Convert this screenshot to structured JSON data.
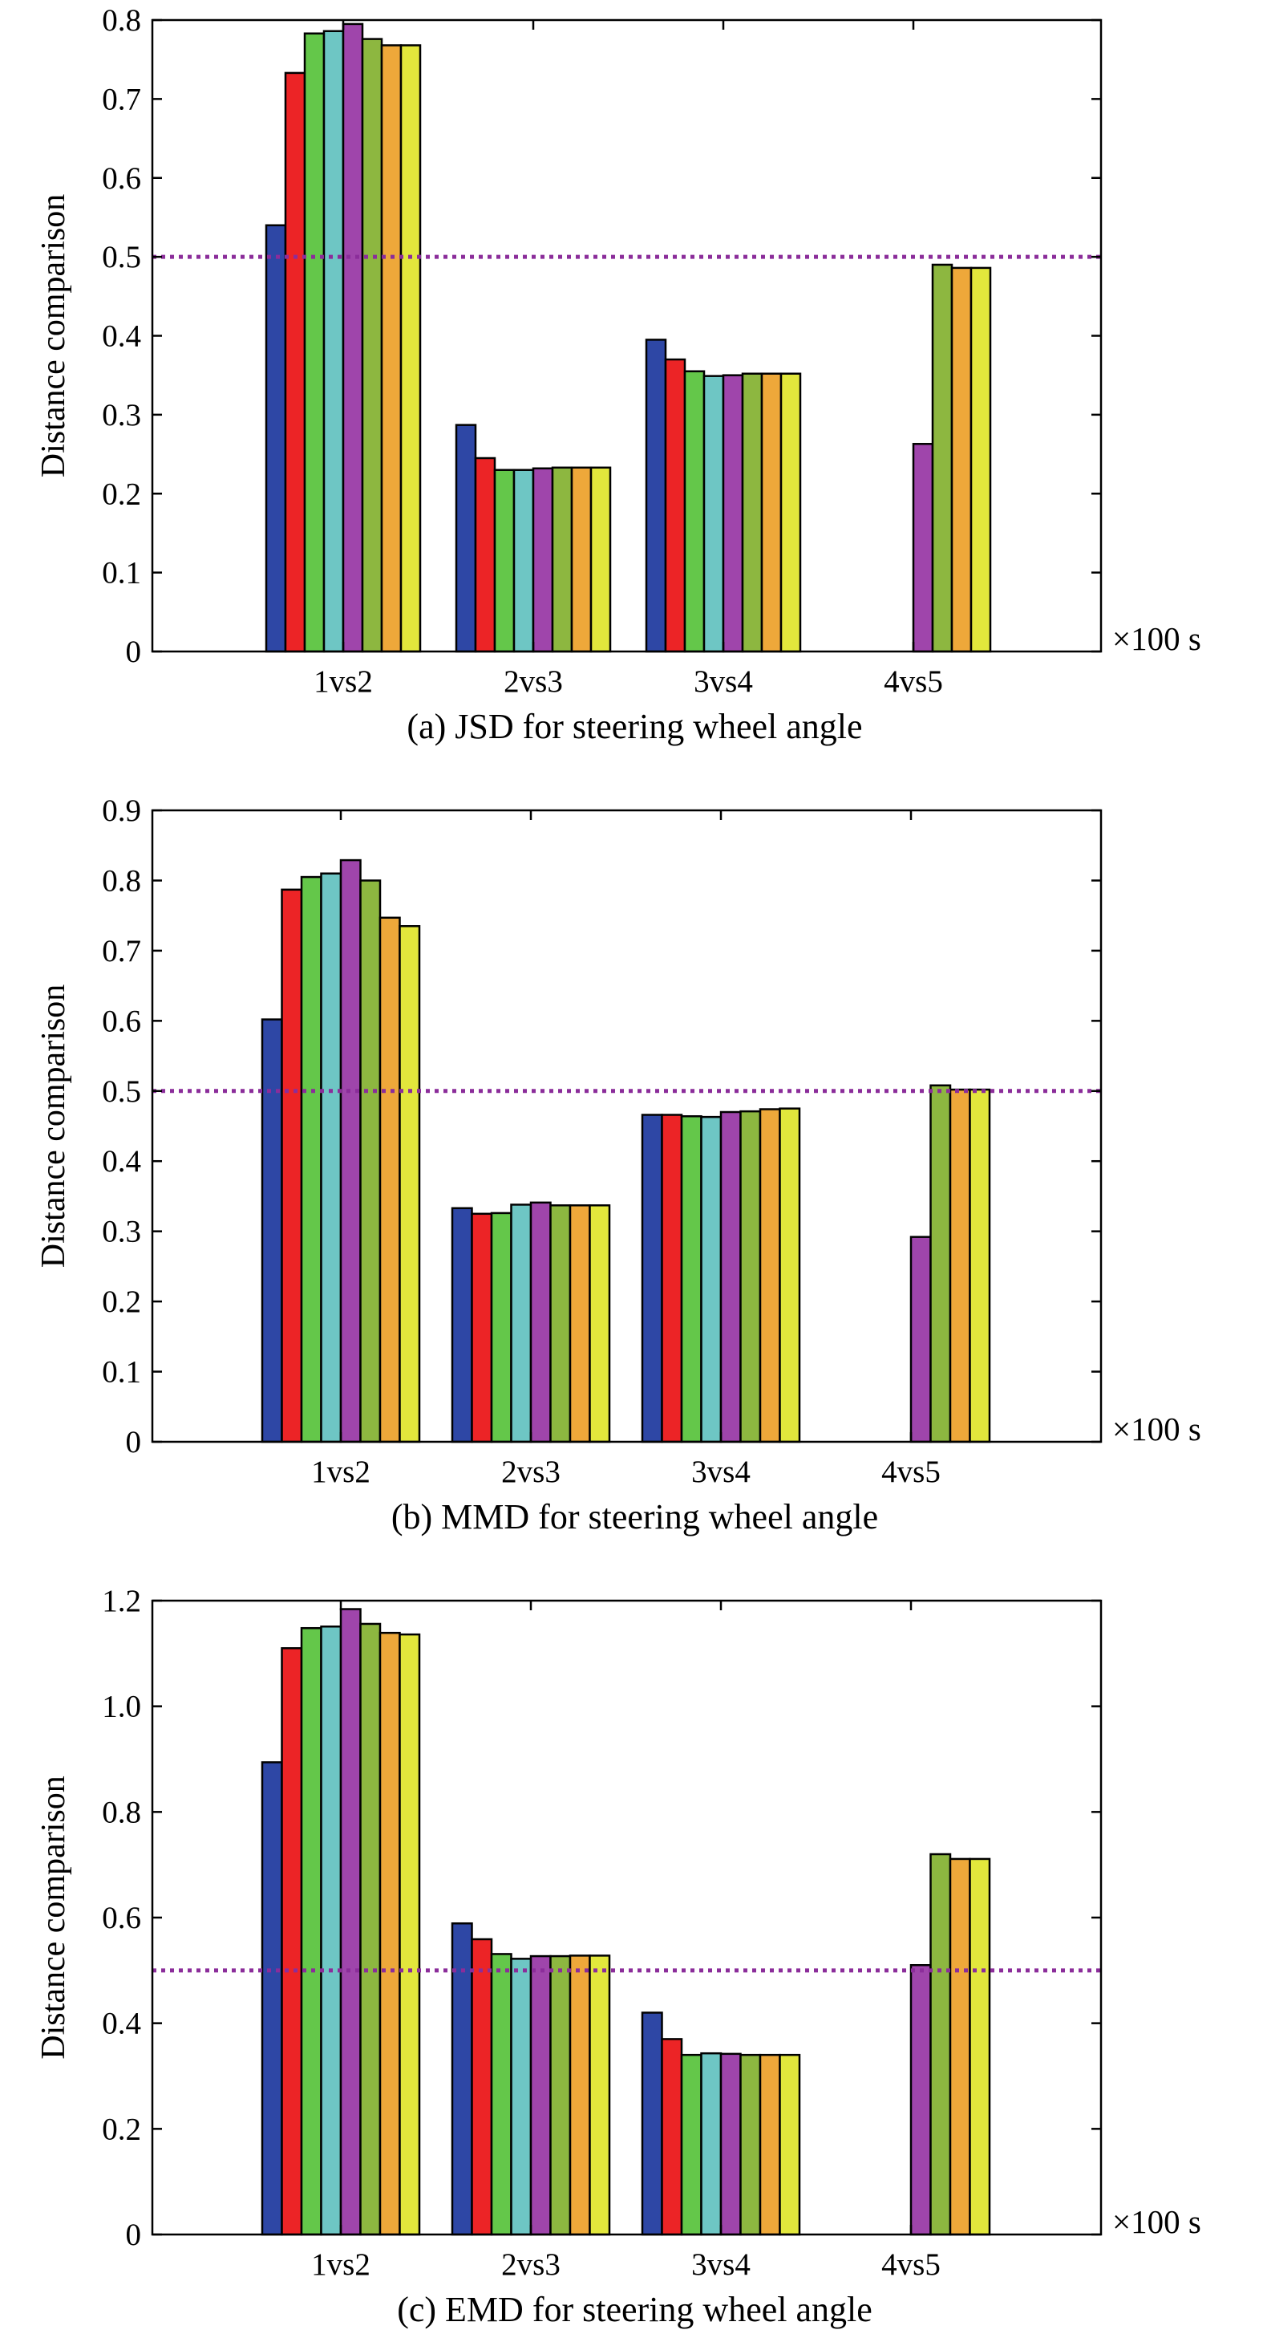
{
  "colors": {
    "series": [
      "#2e47a5",
      "#ec2426",
      "#64c74a",
      "#6ec6c4",
      "#9f45ab",
      "#8db740",
      "#eea83a",
      "#e2e73c"
    ],
    "reference_line": "#8b2d9a"
  },
  "chart_data": [
    {
      "type": "bar",
      "caption": "(a) JSD for steering wheel angle",
      "ylabel": "Distance comparison",
      "x_unit": "×100 s",
      "categories": [
        "1vs2",
        "2vs3",
        "3vs4",
        "4vs5"
      ],
      "ylim": [
        0,
        0.8
      ],
      "yticks": [
        0,
        0.1,
        0.2,
        0.3,
        0.4,
        0.5,
        0.6,
        0.7,
        0.8
      ],
      "ytick_labels": [
        "0",
        "0.1",
        "0.2",
        "0.3",
        "0.4",
        "0.5",
        "0.6",
        "0.7",
        "0.8"
      ],
      "reference_line": 0.5,
      "series": [
        {
          "values": [
            0.54,
            0.287,
            0.395,
            null
          ]
        },
        {
          "values": [
            0.733,
            0.245,
            0.37,
            null
          ]
        },
        {
          "values": [
            0.783,
            0.23,
            0.355,
            null
          ]
        },
        {
          "values": [
            0.786,
            0.23,
            0.349,
            null
          ]
        },
        {
          "values": [
            0.795,
            0.232,
            0.35,
            0.263
          ]
        },
        {
          "values": [
            0.776,
            0.233,
            0.352,
            0.49
          ]
        },
        {
          "values": [
            0.768,
            0.233,
            0.352,
            0.486
          ]
        },
        {
          "values": [
            0.768,
            0.233,
            0.352,
            0.486
          ]
        }
      ]
    },
    {
      "type": "bar",
      "caption": "(b) MMD for steering wheel angle",
      "ylabel": "Distance comparison",
      "x_unit": "×100 s",
      "categories": [
        "1vs2",
        "2vs3",
        "3vs4",
        "4vs5"
      ],
      "ylim": [
        0,
        0.9
      ],
      "yticks": [
        0,
        0.1,
        0.2,
        0.3,
        0.4,
        0.5,
        0.6,
        0.7,
        0.8,
        0.9
      ],
      "ytick_labels": [
        "0",
        "0.1",
        "0.2",
        "0.3",
        "0.4",
        "0.5",
        "0.6",
        "0.7",
        "0.8",
        "0.9"
      ],
      "reference_line": 0.5,
      "series": [
        {
          "values": [
            0.602,
            0.333,
            0.466,
            null
          ]
        },
        {
          "values": [
            0.787,
            0.325,
            0.466,
            null
          ]
        },
        {
          "values": [
            0.805,
            0.326,
            0.464,
            null
          ]
        },
        {
          "values": [
            0.81,
            0.338,
            0.463,
            null
          ]
        },
        {
          "values": [
            0.829,
            0.341,
            0.47,
            0.292
          ]
        },
        {
          "values": [
            0.8,
            0.337,
            0.471,
            0.508
          ]
        },
        {
          "values": [
            0.747,
            0.337,
            0.474,
            0.502
          ]
        },
        {
          "values": [
            0.735,
            0.337,
            0.475,
            0.502
          ]
        }
      ]
    },
    {
      "type": "bar",
      "caption": "(c) EMD for steering wheel angle",
      "ylabel": "Distance comparison",
      "x_unit": "×100 s",
      "categories": [
        "1vs2",
        "2vs3",
        "3vs4",
        "4vs5"
      ],
      "ylim": [
        0,
        1.2
      ],
      "yticks": [
        0,
        0.2,
        0.4,
        0.6,
        0.8,
        1.0,
        1.2
      ],
      "ytick_labels": [
        "0",
        "0.2",
        "0.4",
        "0.6",
        "0.8",
        "1.0",
        "1.2"
      ],
      "reference_line": 0.5,
      "series": [
        {
          "values": [
            0.894,
            0.589,
            0.42,
            null
          ]
        },
        {
          "values": [
            1.11,
            0.559,
            0.37,
            null
          ]
        },
        {
          "values": [
            1.148,
            0.531,
            0.34,
            null
          ]
        },
        {
          "values": [
            1.151,
            0.522,
            0.343,
            null
          ]
        },
        {
          "values": [
            1.184,
            0.527,
            0.342,
            0.51
          ]
        },
        {
          "values": [
            1.156,
            0.527,
            0.34,
            0.72
          ]
        },
        {
          "values": [
            1.139,
            0.528,
            0.34,
            0.711
          ]
        },
        {
          "values": [
            1.136,
            0.528,
            0.34,
            0.711
          ]
        }
      ]
    }
  ]
}
